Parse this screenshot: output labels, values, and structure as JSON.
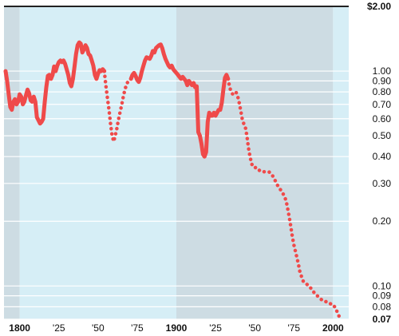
{
  "chart_data": {
    "type": "line",
    "title": "",
    "xlabel": "",
    "ylabel": "",
    "y_scale": "log",
    "xlim": [
      1790,
      2010
    ],
    "ylim": [
      0.07,
      2.0
    ],
    "grid": true,
    "colors": {
      "line": "#ef4a4a",
      "light_band": "#d6eef6",
      "dark_band": "#cddce3",
      "grid": "#ffffff",
      "axis": "#222222"
    },
    "bands": [
      {
        "from": 1790,
        "to": 1800,
        "shade": "dark"
      },
      {
        "from": 1800,
        "to": 1900,
        "shade": "light"
      },
      {
        "from": 1900,
        "to": 2000,
        "shade": "dark"
      },
      {
        "from": 2000,
        "to": 2010,
        "shade": "light"
      }
    ],
    "y_ticks": [
      {
        "value": 2.0,
        "label": "$2.00",
        "bold": true
      },
      {
        "value": 1.0,
        "label": "1.00",
        "bold": false
      },
      {
        "value": 0.9,
        "label": "0.90",
        "bold": false
      },
      {
        "value": 0.8,
        "label": "0.80",
        "bold": false
      },
      {
        "value": 0.7,
        "label": "0.70",
        "bold": false
      },
      {
        "value": 0.6,
        "label": "0.60",
        "bold": false
      },
      {
        "value": 0.5,
        "label": "0.50",
        "bold": false
      },
      {
        "value": 0.4,
        "label": "0.40",
        "bold": false
      },
      {
        "value": 0.3,
        "label": "0.30",
        "bold": false
      },
      {
        "value": 0.2,
        "label": "0.20",
        "bold": false
      },
      {
        "value": 0.1,
        "label": "0.10",
        "bold": false
      },
      {
        "value": 0.09,
        "label": "0.09",
        "bold": false
      },
      {
        "value": 0.08,
        "label": "0.08",
        "bold": false
      },
      {
        "value": 0.07,
        "label": "0.07",
        "bold": true
      }
    ],
    "x_ticks": [
      {
        "value": 1800,
        "label": "1800",
        "bold": true
      },
      {
        "value": 1825,
        "label": "'25",
        "bold": false
      },
      {
        "value": 1850,
        "label": "'50",
        "bold": false
      },
      {
        "value": 1875,
        "label": "'75",
        "bold": false
      },
      {
        "value": 1900,
        "label": "1900",
        "bold": true
      },
      {
        "value": 1925,
        "label": "'25",
        "bold": false
      },
      {
        "value": 1950,
        "label": "'50",
        "bold": false
      },
      {
        "value": 1975,
        "label": "'75",
        "bold": false
      },
      {
        "value": 2000,
        "label": "2000",
        "bold": true
      }
    ],
    "series": [
      {
        "style": "solid",
        "points": [
          [
            1791,
            1.0
          ],
          [
            1792,
            0.9
          ],
          [
            1793,
            0.78
          ],
          [
            1794,
            0.68
          ],
          [
            1795,
            0.66
          ],
          [
            1796,
            0.72
          ],
          [
            1797,
            0.74
          ],
          [
            1798,
            0.7
          ],
          [
            1799,
            0.72
          ],
          [
            1800,
            0.78
          ],
          [
            1801,
            0.76
          ],
          [
            1802,
            0.7
          ],
          [
            1803,
            0.72
          ],
          [
            1804,
            0.77
          ],
          [
            1805,
            0.82
          ],
          [
            1806,
            0.79
          ],
          [
            1807,
            0.73
          ],
          [
            1808,
            0.72
          ],
          [
            1809,
            0.76
          ],
          [
            1810,
            0.72
          ],
          [
            1811,
            0.61
          ],
          [
            1812,
            0.59
          ],
          [
            1813,
            0.57
          ],
          [
            1814,
            0.58
          ],
          [
            1815,
            0.6
          ],
          [
            1816,
            0.72
          ],
          [
            1817,
            0.84
          ],
          [
            1818,
            0.95
          ],
          [
            1819,
            0.96
          ],
          [
            1820,
            0.92
          ],
          [
            1821,
            0.96
          ],
          [
            1822,
            1.05
          ],
          [
            1823,
            1.0
          ],
          [
            1824,
            1.06
          ],
          [
            1825,
            1.1
          ],
          [
            1826,
            1.12
          ],
          [
            1827,
            1.1
          ],
          [
            1828,
            1.12
          ],
          [
            1829,
            1.08
          ],
          [
            1830,
            1.02
          ],
          [
            1831,
            0.96
          ],
          [
            1832,
            0.88
          ],
          [
            1833,
            0.85
          ],
          [
            1834,
            0.92
          ],
          [
            1835,
            1.05
          ],
          [
            1836,
            1.2
          ],
          [
            1837,
            1.32
          ],
          [
            1838,
            1.36
          ],
          [
            1839,
            1.34
          ],
          [
            1840,
            1.22
          ],
          [
            1841,
            1.26
          ],
          [
            1842,
            1.32
          ],
          [
            1843,
            1.28
          ],
          [
            1844,
            1.2
          ],
          [
            1845,
            1.18
          ],
          [
            1846,
            1.12
          ],
          [
            1847,
            1.06
          ],
          [
            1848,
            0.96
          ],
          [
            1849,
            0.92
          ],
          [
            1850,
            0.97
          ],
          [
            1851,
            1.01
          ],
          [
            1852,
            1.0
          ],
          [
            1853,
            1.02
          ],
          [
            1854,
            1.0
          ]
        ]
      },
      {
        "style": "dotted",
        "points": [
          [
            1854,
            1.0
          ],
          [
            1855,
            0.86
          ],
          [
            1856,
            0.75
          ],
          [
            1857,
            0.66
          ],
          [
            1858,
            0.57
          ],
          [
            1859,
            0.5
          ],
          [
            1860,
            0.47
          ],
          [
            1861,
            0.5
          ],
          [
            1862,
            0.54
          ],
          [
            1863,
            0.59
          ],
          [
            1864,
            0.64
          ],
          [
            1865,
            0.69
          ],
          [
            1866,
            0.75
          ],
          [
            1867,
            0.81
          ],
          [
            1868,
            0.86
          ],
          [
            1869,
            0.89
          ],
          [
            1870,
            0.9
          ],
          [
            1871,
            0.92
          ]
        ]
      },
      {
        "style": "solid",
        "points": [
          [
            1871,
            0.92
          ],
          [
            1872,
            0.96
          ],
          [
            1873,
            0.98
          ],
          [
            1874,
            0.95
          ],
          [
            1875,
            0.91
          ],
          [
            1876,
            0.89
          ],
          [
            1877,
            0.93
          ],
          [
            1878,
            1.0
          ],
          [
            1879,
            1.06
          ],
          [
            1880,
            1.12
          ],
          [
            1881,
            1.16
          ],
          [
            1882,
            1.15
          ],
          [
            1883,
            1.14
          ],
          [
            1884,
            1.18
          ],
          [
            1885,
            1.24
          ],
          [
            1886,
            1.22
          ],
          [
            1887,
            1.28
          ],
          [
            1888,
            1.3
          ],
          [
            1889,
            1.32
          ],
          [
            1890,
            1.33
          ],
          [
            1891,
            1.28
          ],
          [
            1892,
            1.2
          ],
          [
            1893,
            1.14
          ],
          [
            1894,
            1.1
          ],
          [
            1895,
            1.06
          ],
          [
            1896,
            1.04
          ],
          [
            1897,
            1.06
          ],
          [
            1898,
            1.02
          ],
          [
            1899,
            1.0
          ],
          [
            1900,
            0.98
          ],
          [
            1901,
            0.96
          ],
          [
            1902,
            0.94
          ],
          [
            1903,
            0.92
          ],
          [
            1904,
            0.94
          ],
          [
            1905,
            0.92
          ],
          [
            1906,
            0.9
          ],
          [
            1907,
            0.86
          ],
          [
            1908,
            0.9
          ],
          [
            1909,
            0.88
          ],
          [
            1910,
            0.86
          ],
          [
            1911,
            0.88
          ],
          [
            1912,
            0.84
          ],
          [
            1913,
            0.85
          ],
          [
            1914,
            0.52
          ],
          [
            1915,
            0.5
          ],
          [
            1916,
            0.46
          ],
          [
            1917,
            0.41
          ],
          [
            1918,
            0.4
          ],
          [
            1919,
            0.42
          ],
          [
            1920,
            0.58
          ],
          [
            1921,
            0.64
          ],
          [
            1922,
            0.62
          ],
          [
            1923,
            0.62
          ],
          [
            1924,
            0.64
          ],
          [
            1925,
            0.62
          ],
          [
            1926,
            0.64
          ],
          [
            1927,
            0.66
          ],
          [
            1928,
            0.66
          ],
          [
            1929,
            0.71
          ],
          [
            1930,
            0.82
          ],
          [
            1931,
            0.93
          ],
          [
            1932,
            0.96
          ],
          [
            1933,
            0.92
          ]
        ]
      },
      {
        "style": "dotted",
        "points": [
          [
            1933,
            0.92
          ],
          [
            1934,
            0.84
          ],
          [
            1935,
            0.8
          ],
          [
            1936,
            0.78
          ],
          [
            1937,
            0.79
          ],
          [
            1938,
            0.8
          ],
          [
            1939,
            0.77
          ],
          [
            1940,
            0.72
          ],
          [
            1941,
            0.66
          ],
          [
            1942,
            0.6
          ],
          [
            1943,
            0.57
          ],
          [
            1944,
            0.55
          ],
          [
            1945,
            0.5
          ],
          [
            1946,
            0.44
          ],
          [
            1947,
            0.4
          ],
          [
            1948,
            0.37
          ],
          [
            1949,
            0.36
          ],
          [
            1950,
            0.36
          ],
          [
            1951,
            0.35
          ],
          [
            1952,
            0.35
          ],
          [
            1953,
            0.345
          ],
          [
            1954,
            0.345
          ],
          [
            1955,
            0.34
          ],
          [
            1956,
            0.34
          ],
          [
            1957,
            0.34
          ],
          [
            1958,
            0.34
          ],
          [
            1959,
            0.34
          ],
          [
            1960,
            0.335
          ],
          [
            1961,
            0.33
          ],
          [
            1962,
            0.32
          ],
          [
            1963,
            0.31
          ],
          [
            1964,
            0.3
          ],
          [
            1965,
            0.29
          ],
          [
            1966,
            0.285
          ],
          [
            1967,
            0.275
          ],
          [
            1968,
            0.27
          ],
          [
            1969,
            0.26
          ],
          [
            1970,
            0.25
          ],
          [
            1971,
            0.23
          ],
          [
            1972,
            0.21
          ],
          [
            1973,
            0.19
          ],
          [
            1974,
            0.17
          ],
          [
            1975,
            0.155
          ],
          [
            1976,
            0.145
          ],
          [
            1977,
            0.135
          ],
          [
            1978,
            0.125
          ],
          [
            1979,
            0.115
          ],
          [
            1980,
            0.11
          ],
          [
            1981,
            0.105
          ],
          [
            1982,
            0.103
          ],
          [
            1983,
            0.102
          ],
          [
            1984,
            0.101
          ],
          [
            1985,
            0.1
          ],
          [
            1986,
            0.097
          ],
          [
            1987,
            0.095
          ],
          [
            1988,
            0.093
          ],
          [
            1989,
            0.091
          ],
          [
            1990,
            0.09
          ],
          [
            1991,
            0.088
          ],
          [
            1992,
            0.087
          ],
          [
            1993,
            0.086
          ],
          [
            1994,
            0.085
          ],
          [
            1995,
            0.085
          ],
          [
            1996,
            0.084
          ],
          [
            1997,
            0.084
          ],
          [
            1998,
            0.083
          ],
          [
            1999,
            0.082
          ],
          [
            2000,
            0.082
          ],
          [
            2001,
            0.08
          ],
          [
            2002,
            0.078
          ],
          [
            2003,
            0.074
          ],
          [
            2004,
            0.072
          ]
        ]
      }
    ]
  }
}
